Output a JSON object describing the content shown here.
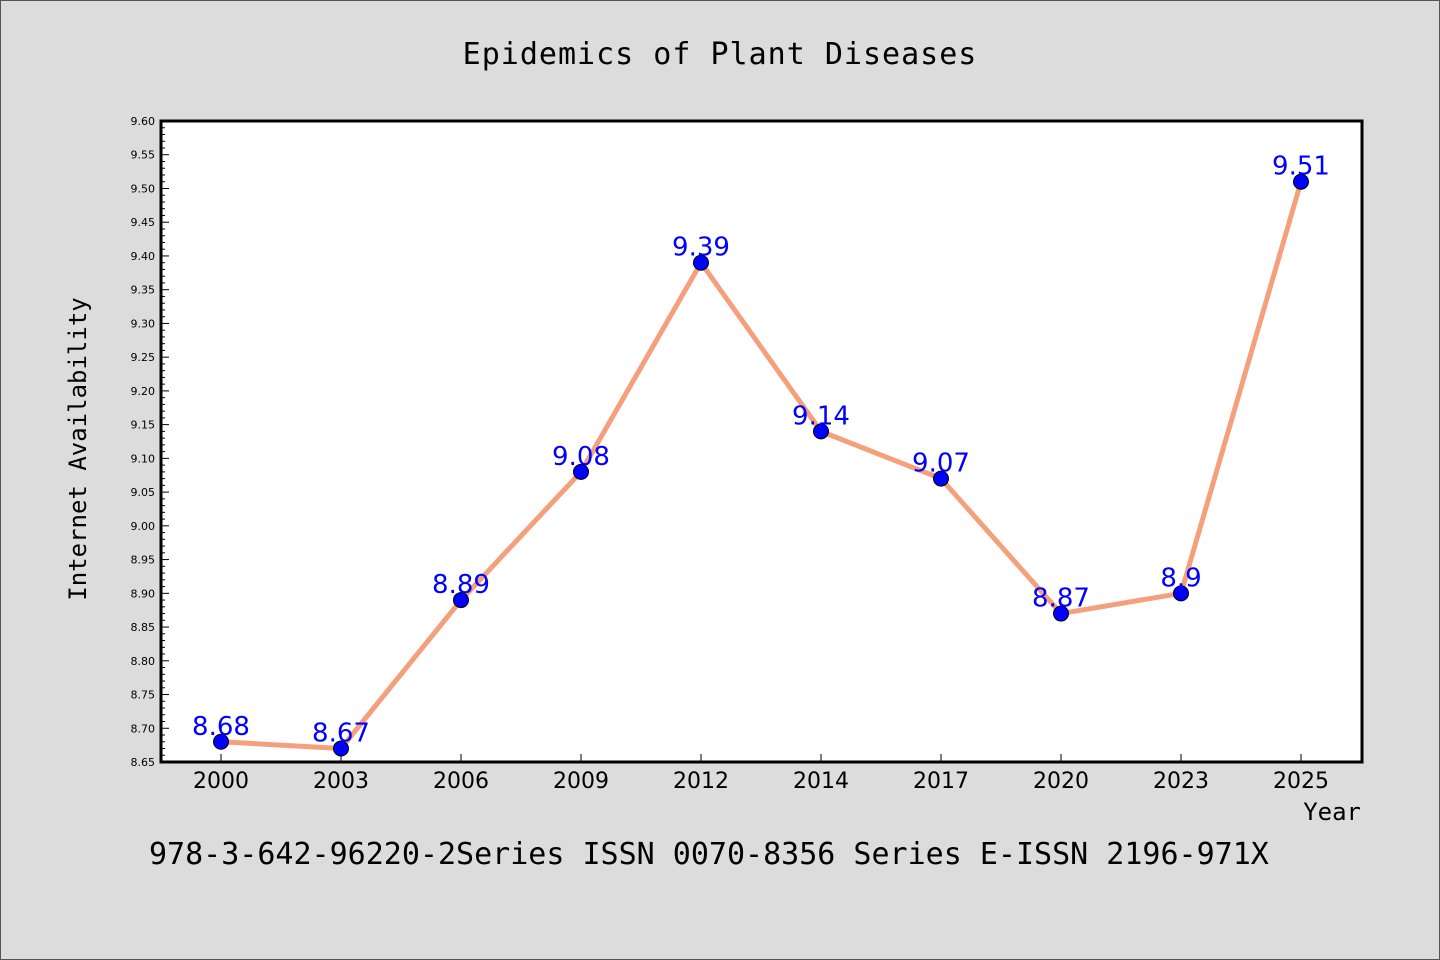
{
  "chart_data": {
    "type": "line",
    "title": "Epidemics of Plant Diseases",
    "xlabel": "Year",
    "ylabel": "Internet Availability",
    "categories": [
      "2000",
      "2003",
      "2006",
      "2009",
      "2012",
      "2014",
      "2017",
      "2020",
      "2023",
      "2025"
    ],
    "series": [
      {
        "values": [
          8.68,
          8.67,
          8.89,
          9.08,
          9.39,
          9.14,
          9.07,
          8.87,
          8.9,
          9.51
        ],
        "labels": [
          "8.68",
          "8.67",
          "8.89",
          "9.08",
          "9.39",
          "9.14",
          "9.07",
          "8.87",
          "8.9",
          "9.51"
        ],
        "line_color": "#f4a07c",
        "marker_color": "#0000ff"
      }
    ],
    "ylim": [
      8.65,
      9.6
    ],
    "yticks": [
      "8.65",
      "8.70",
      "8.75",
      "8.80",
      "8.85",
      "8.90",
      "8.95",
      "9.00",
      "9.05",
      "9.10",
      "9.15",
      "9.20",
      "9.25",
      "9.30",
      "9.35",
      "9.40",
      "9.45",
      "9.50",
      "9.55",
      "9.60"
    ],
    "grid": false,
    "legend": "none"
  },
  "footer": {
    "text": "978-3-642-96220-2Series ISSN 0070-8356 Series E-ISSN 2196-971X"
  },
  "colors": {
    "background": "#dcdcdc",
    "plot_background": "#ffffff"
  }
}
